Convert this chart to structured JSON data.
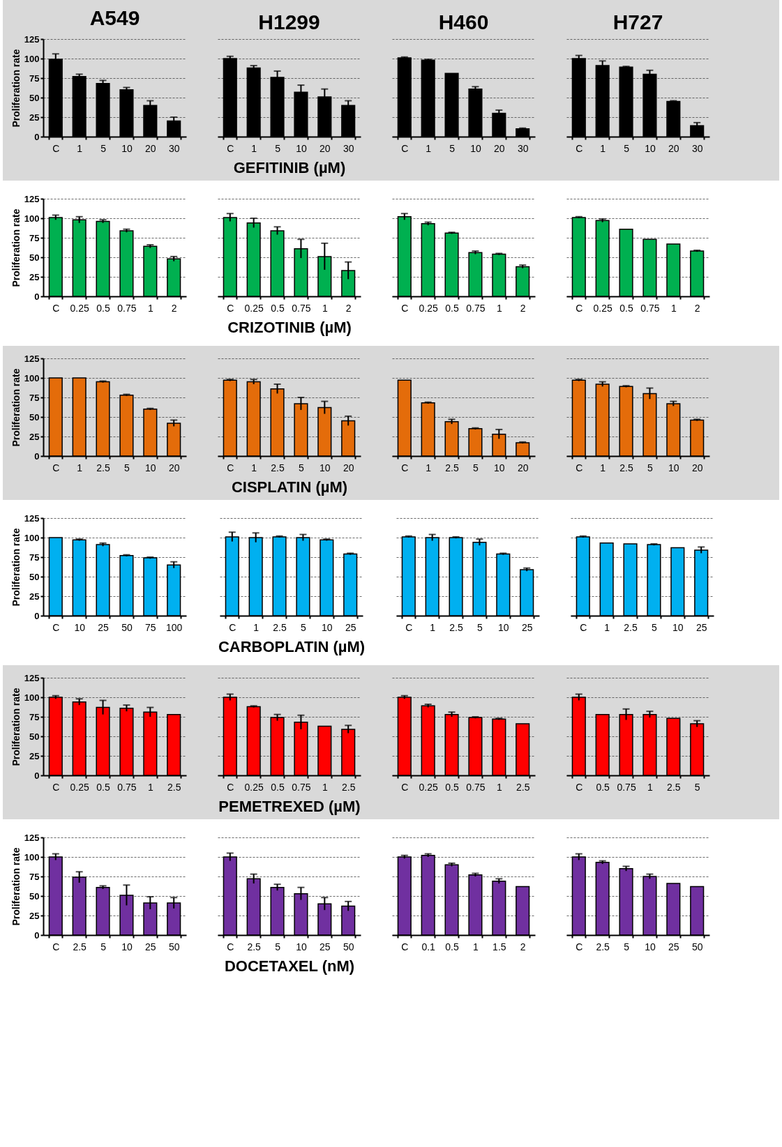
{
  "chart_data": [
    {
      "type": "bar",
      "title": "A549",
      "ylabel": "Proliferation rate",
      "categories": [
        "C",
        "1",
        "5",
        "10",
        "20",
        "30"
      ],
      "values": [
        99,
        77,
        68,
        60,
        40,
        20
      ],
      "errors": [
        7,
        3,
        4,
        3,
        6,
        5
      ],
      "color": "#000000",
      "ylim": [
        0,
        125
      ],
      "yticks": [
        0,
        25,
        50,
        75,
        100,
        125
      ],
      "grid": "y"
    },
    {
      "type": "bar",
      "title": "H1299",
      "xlabel": "GEFITINIB (µM)",
      "categories": [
        "C",
        "1",
        "5",
        "10",
        "20",
        "30"
      ],
      "values": [
        100,
        88,
        76,
        57,
        51,
        40
      ],
      "errors": [
        3,
        3,
        8,
        9,
        10,
        6
      ],
      "color": "#000000",
      "ylim": [
        0,
        125
      ],
      "yticks": [
        0,
        25,
        50,
        75,
        100,
        125
      ],
      "grid": "y",
      "tick_labels": "x"
    },
    {
      "type": "bar",
      "title": "H460",
      "categories": [
        "C",
        "1",
        "5",
        "10",
        "20",
        "30"
      ],
      "values": [
        101,
        98,
        81,
        61,
        30,
        10
      ],
      "errors": [
        1,
        1,
        null,
        3,
        4,
        1
      ],
      "color": "#000000",
      "ylim": [
        0,
        125
      ],
      "yticks": [
        0,
        25,
        50,
        75,
        100,
        125
      ],
      "grid": "y",
      "tick_labels": "x"
    },
    {
      "type": "bar",
      "title": "H727",
      "categories": [
        "C",
        "1",
        "5",
        "10",
        "20",
        "30"
      ],
      "values": [
        100,
        91,
        89,
        80,
        45,
        14
      ],
      "errors": [
        4,
        6,
        1,
        5,
        1,
        4
      ],
      "color": "#000000",
      "ylim": [
        0,
        125
      ],
      "yticks": [
        0,
        25,
        50,
        75,
        100,
        125
      ],
      "grid": "y",
      "tick_labels": "x"
    },
    {
      "type": "bar",
      "ylabel": "Proliferation rate",
      "categories": [
        "C",
        "0.25",
        "0.5",
        "0.75",
        "1",
        "2"
      ],
      "values": [
        101,
        98,
        96,
        84,
        64,
        48
      ],
      "errors": [
        3,
        4,
        2,
        2,
        2,
        3
      ],
      "color": "#00b050",
      "ylim": [
        0,
        125
      ],
      "yticks": [
        0,
        25,
        50,
        75,
        100,
        125
      ],
      "grid": "y"
    },
    {
      "type": "bar",
      "xlabel": "CRIZOTINIB (µM)",
      "categories": [
        "C",
        "0.25",
        "0.5",
        "0.75",
        "1",
        "2"
      ],
      "values": [
        101,
        94,
        84,
        61,
        51,
        33
      ],
      "errors": [
        5,
        6,
        5,
        12,
        17,
        11
      ],
      "color": "#00b050",
      "ylim": [
        0,
        125
      ],
      "yticks": [
        0,
        25,
        50,
        75,
        100,
        125
      ],
      "grid": "y",
      "tick_labels": "x"
    },
    {
      "type": "bar",
      "categories": [
        "C",
        "0.25",
        "0.5",
        "0.75",
        "1",
        "2"
      ],
      "values": [
        102,
        93,
        81,
        56,
        54,
        38
      ],
      "errors": [
        4,
        2,
        1,
        2,
        1,
        2
      ],
      "color": "#00b050",
      "ylim": [
        0,
        125
      ],
      "yticks": [
        0,
        25,
        50,
        75,
        100,
        125
      ],
      "grid": "y",
      "tick_labels": "x"
    },
    {
      "type": "bar",
      "categories": [
        "C",
        "0.25",
        "0.5",
        "0.75",
        "1",
        "2"
      ],
      "values": [
        101,
        97,
        86,
        73,
        67,
        58
      ],
      "errors": [
        1,
        2,
        null,
        null,
        null,
        1
      ],
      "color": "#00b050",
      "ylim": [
        0,
        125
      ],
      "yticks": [
        0,
        25,
        50,
        75,
        100,
        125
      ],
      "grid": "y",
      "tick_labels": "x"
    },
    {
      "type": "bar",
      "ylabel": "Proliferation rate",
      "categories": [
        "C",
        "1",
        "2.5",
        "5",
        "10",
        "20"
      ],
      "values": [
        100,
        100,
        95,
        78,
        60,
        42
      ],
      "errors": [
        null,
        null,
        1,
        1,
        1,
        4
      ],
      "color": "#e46c0a",
      "ylim": [
        0,
        125
      ],
      "yticks": [
        0,
        25,
        50,
        75,
        100,
        125
      ],
      "grid": "y"
    },
    {
      "type": "bar",
      "xlabel": "CISPLATIN (µM)",
      "categories": [
        "C",
        "1",
        "2.5",
        "5",
        "10",
        "20"
      ],
      "values": [
        97,
        95,
        86,
        67,
        62,
        45
      ],
      "errors": [
        1,
        3,
        6,
        8,
        8,
        6
      ],
      "color": "#e46c0a",
      "ylim": [
        0,
        125
      ],
      "yticks": [
        0,
        25,
        50,
        75,
        100,
        125
      ],
      "grid": "y",
      "tick_labels": "x"
    },
    {
      "type": "bar",
      "categories": [
        "C",
        "1",
        "2.5",
        "5",
        "10",
        "20"
      ],
      "values": [
        97,
        68,
        44,
        35,
        28,
        17
      ],
      "errors": [
        null,
        1,
        3,
        1,
        6,
        1
      ],
      "color": "#e46c0a",
      "ylim": [
        0,
        125
      ],
      "yticks": [
        0,
        25,
        50,
        75,
        100,
        125
      ],
      "grid": "y",
      "tick_labels": "x"
    },
    {
      "type": "bar",
      "categories": [
        "C",
        "1",
        "2.5",
        "5",
        "10",
        "20"
      ],
      "values": [
        97,
        92,
        89,
        80,
        67,
        46
      ],
      "errors": [
        1,
        3,
        1,
        7,
        3,
        1
      ],
      "color": "#e46c0a",
      "ylim": [
        0,
        125
      ],
      "yticks": [
        0,
        25,
        50,
        75,
        100,
        125
      ],
      "grid": "y",
      "tick_labels": "x"
    },
    {
      "type": "bar",
      "ylabel": "Proliferation rate",
      "categories": [
        "C",
        "10",
        "25",
        "50",
        "75",
        "100"
      ],
      "values": [
        100,
        97,
        91,
        77,
        74,
        65
      ],
      "errors": [
        null,
        1,
        2,
        1,
        1,
        4
      ],
      "color": "#00b0f0",
      "ylim": [
        0,
        125
      ],
      "yticks": [
        0,
        25,
        50,
        75,
        100,
        125
      ],
      "grid": "y"
    },
    {
      "type": "bar",
      "xlabel": "CARBOPLATIN (µM)",
      "categories": [
        "C",
        "1",
        "2.5",
        "5",
        "10",
        "25"
      ],
      "values": [
        101,
        100,
        101,
        100,
        97,
        79
      ],
      "errors": [
        6,
        6,
        1,
        4,
        1,
        1
      ],
      "color": "#00b0f0",
      "ylim": [
        0,
        125
      ],
      "yticks": [
        0,
        25,
        50,
        75,
        100,
        125
      ],
      "grid": "y",
      "tick_labels": "x"
    },
    {
      "type": "bar",
      "categories": [
        "C",
        "1",
        "2.5",
        "5",
        "10",
        "25"
      ],
      "values": [
        101,
        100,
        100,
        94,
        79,
        59
      ],
      "errors": [
        1,
        4,
        1,
        4,
        1,
        2
      ],
      "color": "#00b0f0",
      "ylim": [
        0,
        125
      ],
      "yticks": [
        0,
        25,
        50,
        75,
        100,
        125
      ],
      "grid": "y",
      "tick_labels": "x"
    },
    {
      "type": "bar",
      "categories": [
        "C",
        "1",
        "2.5",
        "5",
        "10",
        "25"
      ],
      "values": [
        101,
        93,
        92,
        91,
        87,
        84
      ],
      "errors": [
        1,
        null,
        null,
        1,
        null,
        4
      ],
      "color": "#00b0f0",
      "ylim": [
        0,
        125
      ],
      "yticks": [
        0,
        25,
        50,
        75,
        100,
        125
      ],
      "grid": "y",
      "tick_labels": "x"
    },
    {
      "type": "bar",
      "ylabel": "Proliferation rate",
      "categories": [
        "C",
        "0.25",
        "0.5",
        "0.75",
        "1",
        "2.5"
      ],
      "values": [
        100,
        94,
        87,
        86,
        81,
        78
      ],
      "errors": [
        2,
        4,
        9,
        4,
        6,
        null
      ],
      "color": "#ff0000",
      "ylim": [
        0,
        125
      ],
      "yticks": [
        0,
        25,
        50,
        75,
        100,
        125
      ],
      "grid": "y"
    },
    {
      "type": "bar",
      "xlabel": "PEMETREXED (µM)",
      "categories": [
        "C",
        "0.25",
        "0.5",
        "0.75",
        "1",
        "2.5"
      ],
      "values": [
        100,
        88,
        74,
        68,
        63,
        59
      ],
      "errors": [
        4,
        1,
        4,
        9,
        null,
        5
      ],
      "color": "#ff0000",
      "ylim": [
        0,
        125
      ],
      "yticks": [
        0,
        25,
        50,
        75,
        100,
        125
      ],
      "grid": "y",
      "tick_labels": "x"
    },
    {
      "type": "bar",
      "categories": [
        "C",
        "0.25",
        "0.5",
        "0.75",
        "1",
        "2.5"
      ],
      "values": [
        100,
        89,
        78,
        74,
        72,
        66
      ],
      "errors": [
        2,
        2,
        3,
        1,
        1,
        null
      ],
      "color": "#ff0000",
      "ylim": [
        0,
        125
      ],
      "yticks": [
        0,
        25,
        50,
        75,
        100,
        125
      ],
      "grid": "y",
      "tick_labels": "x"
    },
    {
      "type": "bar",
      "categories": [
        "C",
        "0.5",
        "0.75",
        "1",
        "2.5",
        "5"
      ],
      "values": [
        100,
        78,
        78,
        78,
        73,
        66
      ],
      "errors": [
        4,
        null,
        7,
        4,
        null,
        4
      ],
      "color": "#ff0000",
      "ylim": [
        0,
        125
      ],
      "yticks": [
        0,
        25,
        50,
        75,
        100,
        125
      ],
      "grid": "y",
      "tick_labels": "x"
    },
    {
      "type": "bar",
      "ylabel": "Proliferation rate",
      "categories": [
        "C",
        "2.5",
        "5",
        "10",
        "25",
        "50"
      ],
      "values": [
        100,
        74,
        61,
        51,
        41,
        41
      ],
      "errors": [
        4,
        7,
        2,
        13,
        8,
        7
      ],
      "color": "#7030a0",
      "ylim": [
        0,
        125
      ],
      "yticks": [
        0,
        25,
        50,
        75,
        100,
        125
      ],
      "grid": "y"
    },
    {
      "type": "bar",
      "xlabel": "DOCETAXEL (nM)",
      "categories": [
        "C",
        "2.5",
        "5",
        "10",
        "25",
        "50"
      ],
      "values": [
        100,
        72,
        61,
        53,
        40,
        37
      ],
      "errors": [
        5,
        6,
        4,
        8,
        8,
        6
      ],
      "color": "#7030a0",
      "ylim": [
        0,
        125
      ],
      "yticks": [
        0,
        25,
        50,
        75,
        100,
        125
      ],
      "grid": "y",
      "tick_labels": "x"
    },
    {
      "type": "bar",
      "categories": [
        "C",
        "0.1",
        "0.5",
        "1",
        "1.5",
        "2"
      ],
      "values": [
        100,
        102,
        90,
        77,
        69,
        62
      ],
      "errors": [
        2,
        2,
        2,
        2,
        3,
        null
      ],
      "color": "#7030a0",
      "ylim": [
        0,
        125
      ],
      "yticks": [
        0,
        25,
        50,
        75,
        100,
        125
      ],
      "grid": "y",
      "tick_labels": "x"
    },
    {
      "type": "bar",
      "categories": [
        "C",
        "2.5",
        "5",
        "10",
        "25",
        "50"
      ],
      "values": [
        100,
        93,
        85,
        75,
        66,
        62
      ],
      "errors": [
        4,
        2,
        3,
        3,
        null,
        null
      ],
      "color": "#7030a0",
      "ylim": [
        0,
        125
      ],
      "yticks": [
        0,
        25,
        50,
        75,
        100,
        125
      ],
      "grid": "y",
      "tick_labels": "x"
    }
  ]
}
